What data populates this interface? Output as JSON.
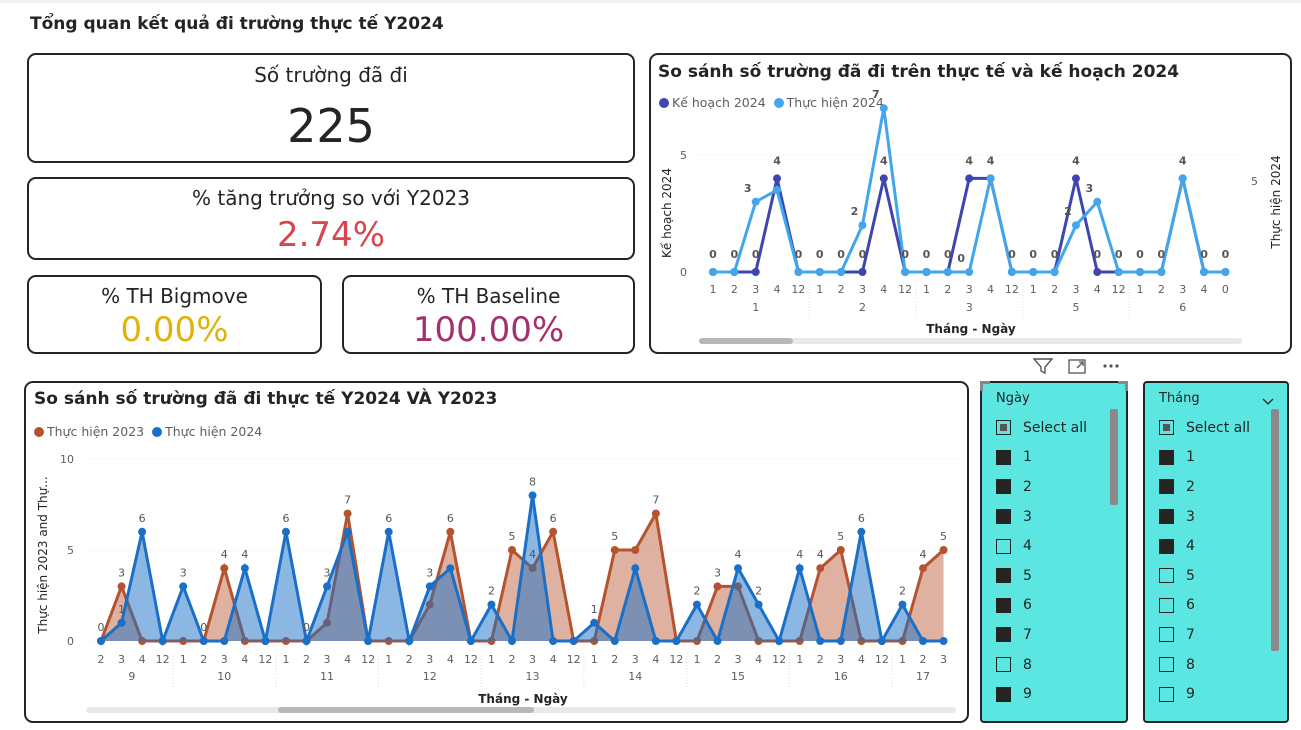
{
  "page_title": "Tổng quan kết quả đi trường thực tế Y2024",
  "kpis": {
    "schools": {
      "label": "Số trường đã đi",
      "value": "225"
    },
    "growth": {
      "label": "% tăng trưởng so với Y2023",
      "value": "2.74%",
      "color": "#d64550"
    },
    "bigmove": {
      "label": "% TH Bigmove",
      "value": "0.00%",
      "color": "#e0b20a"
    },
    "baseline": {
      "label": "% TH Baseline",
      "value": "100.00%",
      "color": "#a3306f"
    }
  },
  "chart_top": {
    "title": "So sánh số trường đã đi trên thực tế và kế hoạch 2024",
    "legend": [
      "Kế hoạch 2024",
      "Thực hiện 2024"
    ],
    "colors": {
      "plan": "#3f45b0",
      "actual": "#41a6ec"
    },
    "ylabel_left": "Kế hoạch 2024",
    "ylabel_right": "Thực hiện 2024",
    "xlabel": "Tháng - Ngày",
    "y_ticks_left": [
      "0",
      "5"
    ],
    "y_ticks_right": [
      "5"
    ],
    "groups": [
      {
        "month": "1",
        "days": [
          "1",
          "2",
          "3",
          "4",
          "12"
        ]
      },
      {
        "month": "2",
        "days": [
          "1",
          "2",
          "3",
          "4",
          "12"
        ]
      },
      {
        "month": "3",
        "days": [
          "1",
          "2",
          "3",
          "4",
          "12"
        ]
      },
      {
        "month": "5",
        "days": [
          "1",
          "2",
          "3",
          "4",
          "12"
        ]
      },
      {
        "month": "6",
        "days": [
          "1",
          "2",
          "3",
          "4",
          "0"
        ]
      }
    ]
  },
  "chart_bottom": {
    "title": "So sánh số trường đã đi thực tế Y2024 VÀ Y2023",
    "legend": [
      "Thực hiện 2023",
      "Thực hiện 2024"
    ],
    "colors": {
      "y2023": "#b5532e",
      "y2024": "#1a6fc6"
    },
    "ylabel": "Thực hiện 2023 and Thự...",
    "xlabel": "Tháng - Ngày",
    "y_ticks": [
      "0",
      "5",
      "10"
    ],
    "groups": [
      {
        "month": "9",
        "days": [
          "2",
          "3",
          "4",
          "12"
        ]
      },
      {
        "month": "10",
        "days": [
          "1",
          "2",
          "3",
          "4",
          "12"
        ]
      },
      {
        "month": "11",
        "days": [
          "1",
          "2",
          "3",
          "4",
          "12"
        ]
      },
      {
        "month": "12",
        "days": [
          "1",
          "2",
          "3",
          "4",
          "12"
        ]
      },
      {
        "month": "13",
        "days": [
          "1",
          "2",
          "3",
          "4",
          "12"
        ]
      },
      {
        "month": "14",
        "days": [
          "1",
          "2",
          "3",
          "4",
          "12"
        ]
      },
      {
        "month": "15",
        "days": [
          "1",
          "2",
          "3",
          "4",
          "12"
        ]
      },
      {
        "month": "16",
        "days": [
          "1",
          "2",
          "3",
          "4",
          "12"
        ]
      },
      {
        "month": "17",
        "days": [
          "1",
          "2",
          "3"
        ]
      }
    ]
  },
  "chart_data": [
    {
      "type": "line",
      "title": "So sánh số trường đã đi trên thực tế và kế hoạch 2024",
      "x": [
        "1-1",
        "1-2",
        "1-3",
        "1-4",
        "1-12",
        "2-1",
        "2-2",
        "2-3",
        "2-4",
        "2-12",
        "3-1",
        "3-2",
        "3-3",
        "3-4",
        "3-12",
        "5-1",
        "5-2",
        "5-3",
        "5-4",
        "5-12",
        "6-1",
        "6-2",
        "6-3",
        "6-4",
        "6-0"
      ],
      "xlabel": "Tháng - Ngày",
      "series": [
        {
          "name": "Kế hoạch 2024",
          "values": [
            0,
            0,
            0,
            4,
            0,
            0,
            0,
            0,
            4,
            0,
            0,
            0,
            4,
            4,
            0,
            0,
            0,
            4,
            0,
            0,
            0,
            0,
            4,
            0,
            0
          ]
        },
        {
          "name": "Thực hiện 2024",
          "values": [
            0,
            0,
            3,
            3.5,
            0,
            0,
            0,
            2,
            7,
            0,
            0,
            0,
            0,
            4,
            0,
            0,
            0,
            2,
            3,
            0,
            0,
            0,
            4,
            0,
            0
          ]
        }
      ],
      "labels_plan": [
        "0",
        "0",
        "0",
        "4",
        "0",
        "0",
        "0",
        "0",
        "4",
        "0",
        "0",
        "0",
        "4",
        "4",
        "0",
        "0",
        "0",
        "4",
        "0",
        "0",
        "0",
        "0",
        "4",
        "0",
        "0"
      ],
      "labels_actual": [
        "",
        "",
        "3",
        "",
        "",
        "",
        "",
        "2",
        "7",
        "",
        "",
        "",
        "0",
        "",
        "",
        "",
        "",
        "2",
        "3",
        "",
        "",
        "",
        "",
        "",
        ""
      ]
    },
    {
      "type": "area",
      "title": "So sánh số trường đã đi thực tế Y2024 VÀ Y2023",
      "x": [
        "9-2",
        "9-3",
        "9-4",
        "9-12",
        "10-1",
        "10-2",
        "10-3",
        "10-4",
        "10-12",
        "11-1",
        "11-2",
        "11-3",
        "11-4",
        "11-12",
        "12-1",
        "12-2",
        "12-3",
        "12-4",
        "12-12",
        "13-1",
        "13-2",
        "13-3",
        "13-4",
        "13-12",
        "14-1",
        "14-2",
        "14-3",
        "14-4",
        "14-12",
        "15-1",
        "15-2",
        "15-3",
        "15-4",
        "15-12",
        "16-1",
        "16-2",
        "16-3",
        "16-4",
        "16-12",
        "17-1",
        "17-2",
        "17-3"
      ],
      "xlabel": "Tháng - Ngày",
      "ylim": [
        0,
        10
      ],
      "series": [
        {
          "name": "Thực hiện 2023",
          "values": [
            0,
            3,
            0,
            0,
            0,
            0,
            4,
            0,
            0,
            0,
            0,
            1,
            7,
            0,
            0,
            0,
            2,
            6,
            0,
            0,
            5,
            4,
            6,
            0,
            0,
            5,
            5,
            7,
            0,
            0,
            3,
            3,
            0,
            0,
            0,
            4,
            5,
            0,
            0,
            0,
            4,
            5
          ]
        },
        {
          "name": "Thực hiện 2024",
          "values": [
            0,
            1,
            6,
            0,
            3,
            0,
            0,
            4,
            0,
            6,
            0,
            3,
            6,
            0,
            6,
            0,
            3,
            4,
            0,
            2,
            0,
            8,
            0,
            0,
            1,
            0,
            4,
            0,
            0,
            2,
            0,
            4,
            2,
            0,
            4,
            0,
            0,
            6,
            0,
            2,
            0,
            0
          ]
        }
      ],
      "labels_2023": [
        "",
        "3",
        "",
        "",
        "",
        "",
        "4",
        "",
        "",
        "",
        "",
        "",
        "7",
        "",
        "",
        "",
        "",
        "6",
        "",
        "",
        "5",
        "4",
        "6",
        "",
        "",
        "5",
        "",
        "7",
        "",
        "",
        "3",
        "",
        "",
        "",
        "",
        "4",
        "5",
        "",
        "",
        "",
        "4",
        "5"
      ],
      "labels_2024": [
        "0",
        "1",
        "6",
        "",
        "3",
        "0",
        "",
        "4",
        "",
        "6",
        "0",
        "3",
        "",
        "",
        "6",
        "",
        "3",
        "",
        "",
        "2",
        "",
        "8",
        "",
        "",
        "1",
        "",
        "",
        "",
        "",
        "2",
        "",
        "4",
        "2",
        "",
        "4",
        "",
        "",
        "6",
        "",
        "2",
        "",
        ""
      ]
    }
  ],
  "slicer_day": {
    "title": "Ngày",
    "select_all": "Select all",
    "items": [
      {
        "label": "1",
        "state": "on"
      },
      {
        "label": "2",
        "state": "on"
      },
      {
        "label": "3",
        "state": "on"
      },
      {
        "label": "4",
        "state": "off"
      },
      {
        "label": "5",
        "state": "on"
      },
      {
        "label": "6",
        "state": "on"
      },
      {
        "label": "7",
        "state": "on"
      },
      {
        "label": "8",
        "state": "off"
      },
      {
        "label": "9",
        "state": "on"
      }
    ]
  },
  "slicer_month": {
    "title": "Tháng",
    "select_all": "Select all",
    "items": [
      {
        "label": "1",
        "state": "on"
      },
      {
        "label": "2",
        "state": "on"
      },
      {
        "label": "3",
        "state": "on"
      },
      {
        "label": "4",
        "state": "on"
      },
      {
        "label": "5",
        "state": "off"
      },
      {
        "label": "6",
        "state": "off"
      },
      {
        "label": "7",
        "state": "off"
      },
      {
        "label": "8",
        "state": "off"
      },
      {
        "label": "9",
        "state": "off"
      }
    ]
  },
  "icons": {
    "filter": "filter-icon",
    "focus": "focus-mode-icon",
    "more": "more-options-icon",
    "chevron": "chevron-down-icon"
  }
}
